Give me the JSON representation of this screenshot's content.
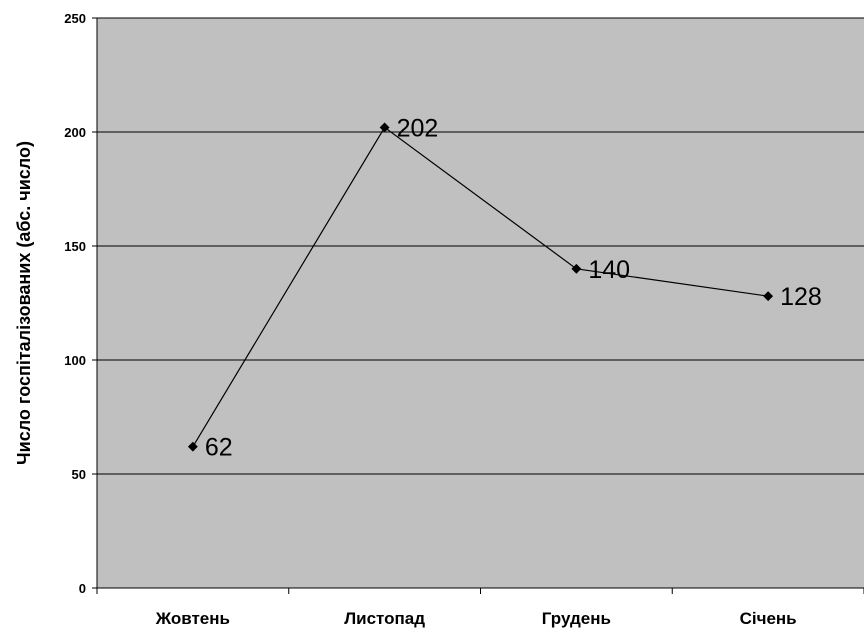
{
  "chart_data": {
    "type": "line",
    "categories": [
      "Жовтень",
      "Листопад",
      "Грудень",
      "Січень"
    ],
    "series": [
      {
        "values": [
          62,
          202,
          140,
          128
        ]
      }
    ],
    "data_labels": [
      "62",
      "202",
      "140",
      "128"
    ],
    "ylabel": "Число госпіталізованих (абс. число)",
    "xlabel": "",
    "ylim": [
      0,
      250
    ],
    "yticks": [
      0,
      50,
      100,
      150,
      200,
      250
    ],
    "ytick_labels": [
      "0",
      "50",
      "100",
      "150",
      "200",
      "250"
    ],
    "grid": true,
    "legend": "none",
    "colors": {
      "plot_bg": "#c0c0c0",
      "line": "#000000",
      "grid": "#000000"
    }
  }
}
